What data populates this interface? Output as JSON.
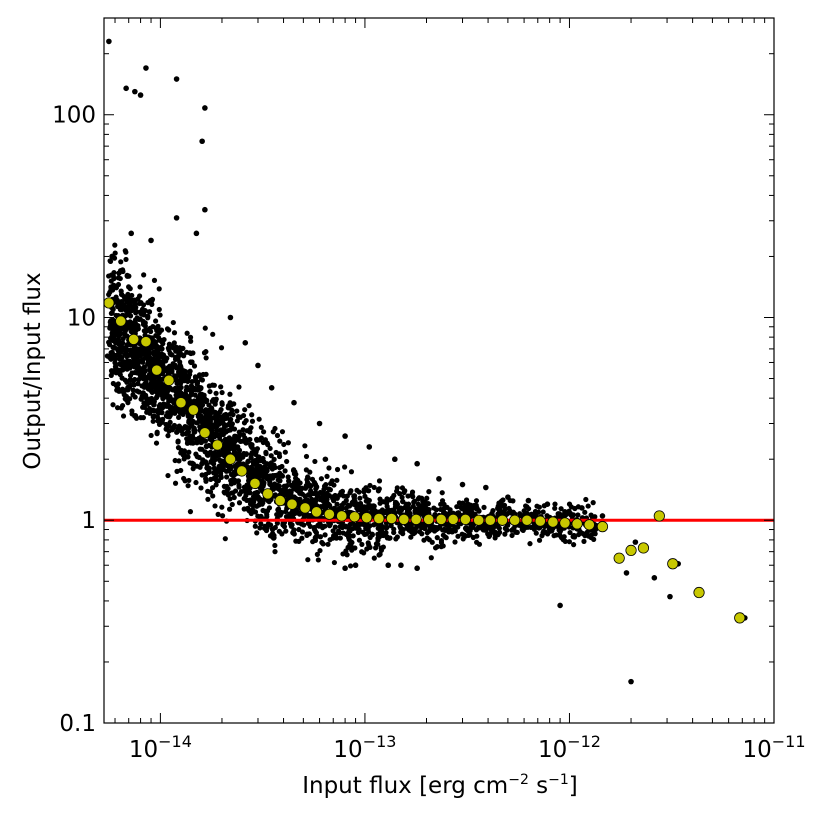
{
  "chart_data": {
    "type": "scatter",
    "title": "",
    "xscale": "log",
    "yscale": "log",
    "xlim": [
      5.3e-15,
      1e-11
    ],
    "ylim": [
      0.1,
      300
    ],
    "xlabel": {
      "main": "Input flux [erg cm",
      "exp1": "−2",
      "mid": " s",
      "exp2": "−1",
      "end": "]"
    },
    "ylabel": "Output/Input flux",
    "x_ticks": [
      {
        "value": 1e-14,
        "base": "10",
        "exp": "−14"
      },
      {
        "value": 1e-13,
        "base": "10",
        "exp": "−13"
      },
      {
        "value": 1e-12,
        "base": "10",
        "exp": "−12"
      },
      {
        "value": 1e-11,
        "base": "10",
        "exp": "−11"
      }
    ],
    "y_ticks": [
      {
        "value": 0.1,
        "label": "0.1"
      },
      {
        "value": 1,
        "label": "1"
      },
      {
        "value": 10,
        "label": "10"
      },
      {
        "value": 100,
        "label": "100"
      }
    ],
    "grid": false,
    "reference_line": {
      "y": 1,
      "color": "#ff0000"
    },
    "series": [
      {
        "marker": "small-dot",
        "color": "#000000",
        "points": [
          [
            5.6e-15,
            230
          ],
          [
            6.8e-15,
            135
          ],
          [
            7.5e-15,
            130
          ],
          [
            8e-15,
            125
          ],
          [
            8.5e-15,
            170
          ],
          [
            1.2e-14,
            150
          ],
          [
            1.65e-14,
            108
          ],
          [
            1.6e-14,
            74
          ],
          [
            1.65e-14,
            34
          ],
          [
            1.2e-14,
            31
          ],
          [
            1.5e-14,
            26
          ],
          [
            7.2e-15,
            26
          ],
          [
            9e-15,
            24
          ],
          [
            5.8e-15,
            20
          ],
          [
            6.4e-15,
            17
          ],
          [
            2.2e-14,
            10
          ],
          [
            2.6e-14,
            7.5
          ],
          [
            3e-14,
            5.8
          ],
          [
            3.5e-14,
            4.5
          ],
          [
            4.5e-14,
            3.8
          ],
          [
            6e-14,
            3.0
          ],
          [
            8e-14,
            2.6
          ],
          [
            1.05e-13,
            2.3
          ],
          [
            1.4e-13,
            2.0
          ],
          [
            1.8e-13,
            1.9
          ],
          [
            2.3e-13,
            1.6
          ],
          [
            3e-13,
            1.5
          ],
          [
            3.9e-13,
            1.45
          ],
          [
            5e-13,
            1.3
          ],
          [
            6.3e-13,
            1.25
          ],
          [
            7.8e-13,
            1.2
          ],
          [
            9.5e-13,
            1.1
          ],
          [
            1.15e-12,
            1.15
          ],
          [
            1.45e-12,
            1.05
          ],
          [
            1.3e-13,
            0.6
          ],
          [
            1.5e-13,
            0.6
          ],
          [
            1.8e-13,
            0.58
          ],
          [
            8e-14,
            0.58
          ],
          [
            9e-14,
            0.6
          ],
          [
            9e-13,
            0.38
          ],
          [
            2e-12,
            0.16
          ],
          [
            1.9e-12,
            0.55
          ],
          [
            2.6e-12,
            0.52
          ],
          [
            3.1e-12,
            0.42
          ],
          [
            3.4e-12,
            0.61
          ],
          [
            7.2e-12,
            0.33
          ],
          [
            2.3e-12,
            0.75
          ],
          [
            2.1e-12,
            0.78
          ]
        ],
        "cloud": [
          {
            "x": 5.6e-15,
            "y": 9.5,
            "spread": 0.16
          },
          {
            "x": 6.5e-15,
            "y": 8.2,
            "spread": 0.16
          },
          {
            "x": 7.5e-15,
            "y": 7.0,
            "spread": 0.16
          },
          {
            "x": 8.8e-15,
            "y": 6.0,
            "spread": 0.16
          },
          {
            "x": 1e-14,
            "y": 5.0,
            "spread": 0.16
          },
          {
            "x": 1.2e-14,
            "y": 4.2,
            "spread": 0.16
          },
          {
            "x": 1.4e-14,
            "y": 3.5,
            "spread": 0.15
          },
          {
            "x": 1.65e-14,
            "y": 2.9,
            "spread": 0.15
          },
          {
            "x": 1.95e-14,
            "y": 2.4,
            "spread": 0.14
          },
          {
            "x": 2.3e-14,
            "y": 2.0,
            "spread": 0.14
          },
          {
            "x": 2.8e-14,
            "y": 1.7,
            "spread": 0.13
          },
          {
            "x": 3.3e-14,
            "y": 1.45,
            "spread": 0.12
          },
          {
            "x": 4e-14,
            "y": 1.3,
            "spread": 0.11
          },
          {
            "x": 5e-14,
            "y": 1.18,
            "spread": 0.1
          },
          {
            "x": 6.3e-14,
            "y": 1.1,
            "spread": 0.09
          },
          {
            "x": 8e-14,
            "y": 1.06,
            "spread": 0.09
          },
          {
            "x": 1e-13,
            "y": 1.03,
            "spread": 0.08
          },
          {
            "x": 1.3e-13,
            "y": 1.02,
            "spread": 0.07
          },
          {
            "x": 1.7e-13,
            "y": 1.01,
            "spread": 0.06
          },
          {
            "x": 2.2e-13,
            "y": 1.0,
            "spread": 0.06
          },
          {
            "x": 3e-13,
            "y": 1.0,
            "spread": 0.05
          },
          {
            "x": 4e-13,
            "y": 1.0,
            "spread": 0.05
          },
          {
            "x": 5.5e-13,
            "y": 1.0,
            "spread": 0.04
          },
          {
            "x": 7.5e-13,
            "y": 0.98,
            "spread": 0.04
          },
          {
            "x": 1e-12,
            "y": 0.97,
            "spread": 0.04
          },
          {
            "x": 1.35e-12,
            "y": 0.95,
            "spread": 0.04
          }
        ]
      },
      {
        "marker": "large-circle",
        "color": "#c8c800",
        "points": [
          [
            5.6e-15,
            11.8
          ],
          [
            6.4e-15,
            9.6
          ],
          [
            7.4e-15,
            7.8
          ],
          [
            8.5e-15,
            7.6
          ],
          [
            9.6e-15,
            5.5
          ],
          [
            1.1e-14,
            4.9
          ],
          [
            1.26e-14,
            3.8
          ],
          [
            1.45e-14,
            3.5
          ],
          [
            1.65e-14,
            2.7
          ],
          [
            1.9e-14,
            2.35
          ],
          [
            2.2e-14,
            2.0
          ],
          [
            2.5e-14,
            1.75
          ],
          [
            2.9e-14,
            1.52
          ],
          [
            3.35e-14,
            1.35
          ],
          [
            3.85e-14,
            1.25
          ],
          [
            4.4e-14,
            1.2
          ],
          [
            5.1e-14,
            1.15
          ],
          [
            5.8e-14,
            1.1
          ],
          [
            6.7e-14,
            1.07
          ],
          [
            7.7e-14,
            1.05
          ],
          [
            8.9e-14,
            1.04
          ],
          [
            1.02e-13,
            1.03
          ],
          [
            1.17e-13,
            1.02
          ],
          [
            1.35e-13,
            1.02
          ],
          [
            1.55e-13,
            1.01
          ],
          [
            1.78e-13,
            1.01
          ],
          [
            2.05e-13,
            1.01
          ],
          [
            2.36e-13,
            1.01
          ],
          [
            2.7e-13,
            1.01
          ],
          [
            3.1e-13,
            1.01
          ],
          [
            3.6e-13,
            1.0
          ],
          [
            4.1e-13,
            1.0
          ],
          [
            4.7e-13,
            1.0
          ],
          [
            5.4e-13,
            1.0
          ],
          [
            6.2e-13,
            1.0
          ],
          [
            7.2e-13,
            0.99
          ],
          [
            8.3e-13,
            0.98
          ],
          [
            9.5e-13,
            0.97
          ],
          [
            1.09e-12,
            0.96
          ],
          [
            1.25e-12,
            0.95
          ],
          [
            1.45e-12,
            0.93
          ],
          [
            1.75e-12,
            0.65
          ],
          [
            2e-12,
            0.71
          ],
          [
            2.3e-12,
            0.73
          ],
          [
            2.75e-12,
            1.05
          ],
          [
            3.2e-12,
            0.61
          ],
          [
            4.3e-12,
            0.44
          ],
          [
            6.8e-12,
            0.33
          ]
        ]
      }
    ]
  }
}
